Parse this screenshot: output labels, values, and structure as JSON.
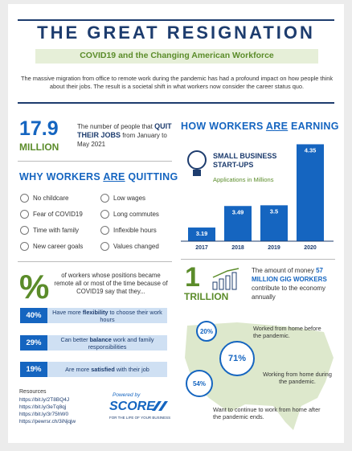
{
  "header": {
    "title": "THE GREAT RESIGNATION",
    "subtitle": "COVID19 and the Changing American Workforce",
    "intro": "The massive migration from office to remote work during the pandemic has had a profound impact on how people think about their jobs. The result is a societal shift in what workers now consider the career status quo."
  },
  "quit_stat": {
    "number": "17.9",
    "unit": "MILLION",
    "text_pre": "The number of people that",
    "text_em": "QUIT THEIR JOBS",
    "text_post": "from January to May 2021"
  },
  "quitting": {
    "title_pre": "WHY WORKERS",
    "title_em": "ARE",
    "title_post": "QUITTING",
    "reasons": [
      "No childcare",
      "Low wages",
      "Fear of COVID19",
      "Long commutes",
      "Time with family",
      "Inflexible hours",
      "New career goals",
      "Values changed"
    ]
  },
  "remote": {
    "symbol": "%",
    "text": "of workers whose positions became remote all or most of the time because of COVID19 say that they...",
    "items": [
      {
        "value": "40%",
        "pre": "Have more",
        "em": "flexibility",
        "post": "to choose their work hours"
      },
      {
        "value": "29%",
        "pre": "Can better",
        "em": "balance",
        "post": "work and family responsibilities"
      },
      {
        "value": "19%",
        "pre": "Are more",
        "em": "satisfied",
        "post": "with their job"
      }
    ]
  },
  "resources": {
    "title": "Resources",
    "links": [
      "https://bit.ly/2T8BQ4J",
      "https://bit.ly/3eTq8qj",
      "https://bit.ly/3r75hW0",
      "https://pewrsr.ch/3iNjqjw"
    ]
  },
  "footer": {
    "powered": "Powered by",
    "brand": "SCORE",
    "tagline": "FOR THE LIFE OF YOUR BUSINESS"
  },
  "earning": {
    "title_pre": "HOW WORKERS",
    "title_em": "ARE",
    "title_post": "EARNING"
  },
  "chart_data": {
    "type": "bar",
    "title": "SMALL BUSINESS START-UPS",
    "subtitle": "Applications in Millions",
    "categories": [
      "2017",
      "2018",
      "2019",
      "2020"
    ],
    "values": [
      3.19,
      3.49,
      3.5,
      4.35
    ],
    "color": "#1565c0",
    "ylim": [
      3,
      4.4
    ]
  },
  "gig": {
    "number": "1",
    "unit": "TRILLION",
    "text_pre": "The amount of money",
    "text_em": "57 MILLION GIG WORKERS",
    "text_post": "contribute to the economy annually"
  },
  "map": {
    "bubbles": [
      {
        "value": "20%",
        "text": "Worked from home before the pandemic."
      },
      {
        "value": "71%",
        "text": "Working from home during the pandemic."
      },
      {
        "value": "54%",
        "text": "Want to continue to work from home after the pandemic ends."
      }
    ]
  }
}
